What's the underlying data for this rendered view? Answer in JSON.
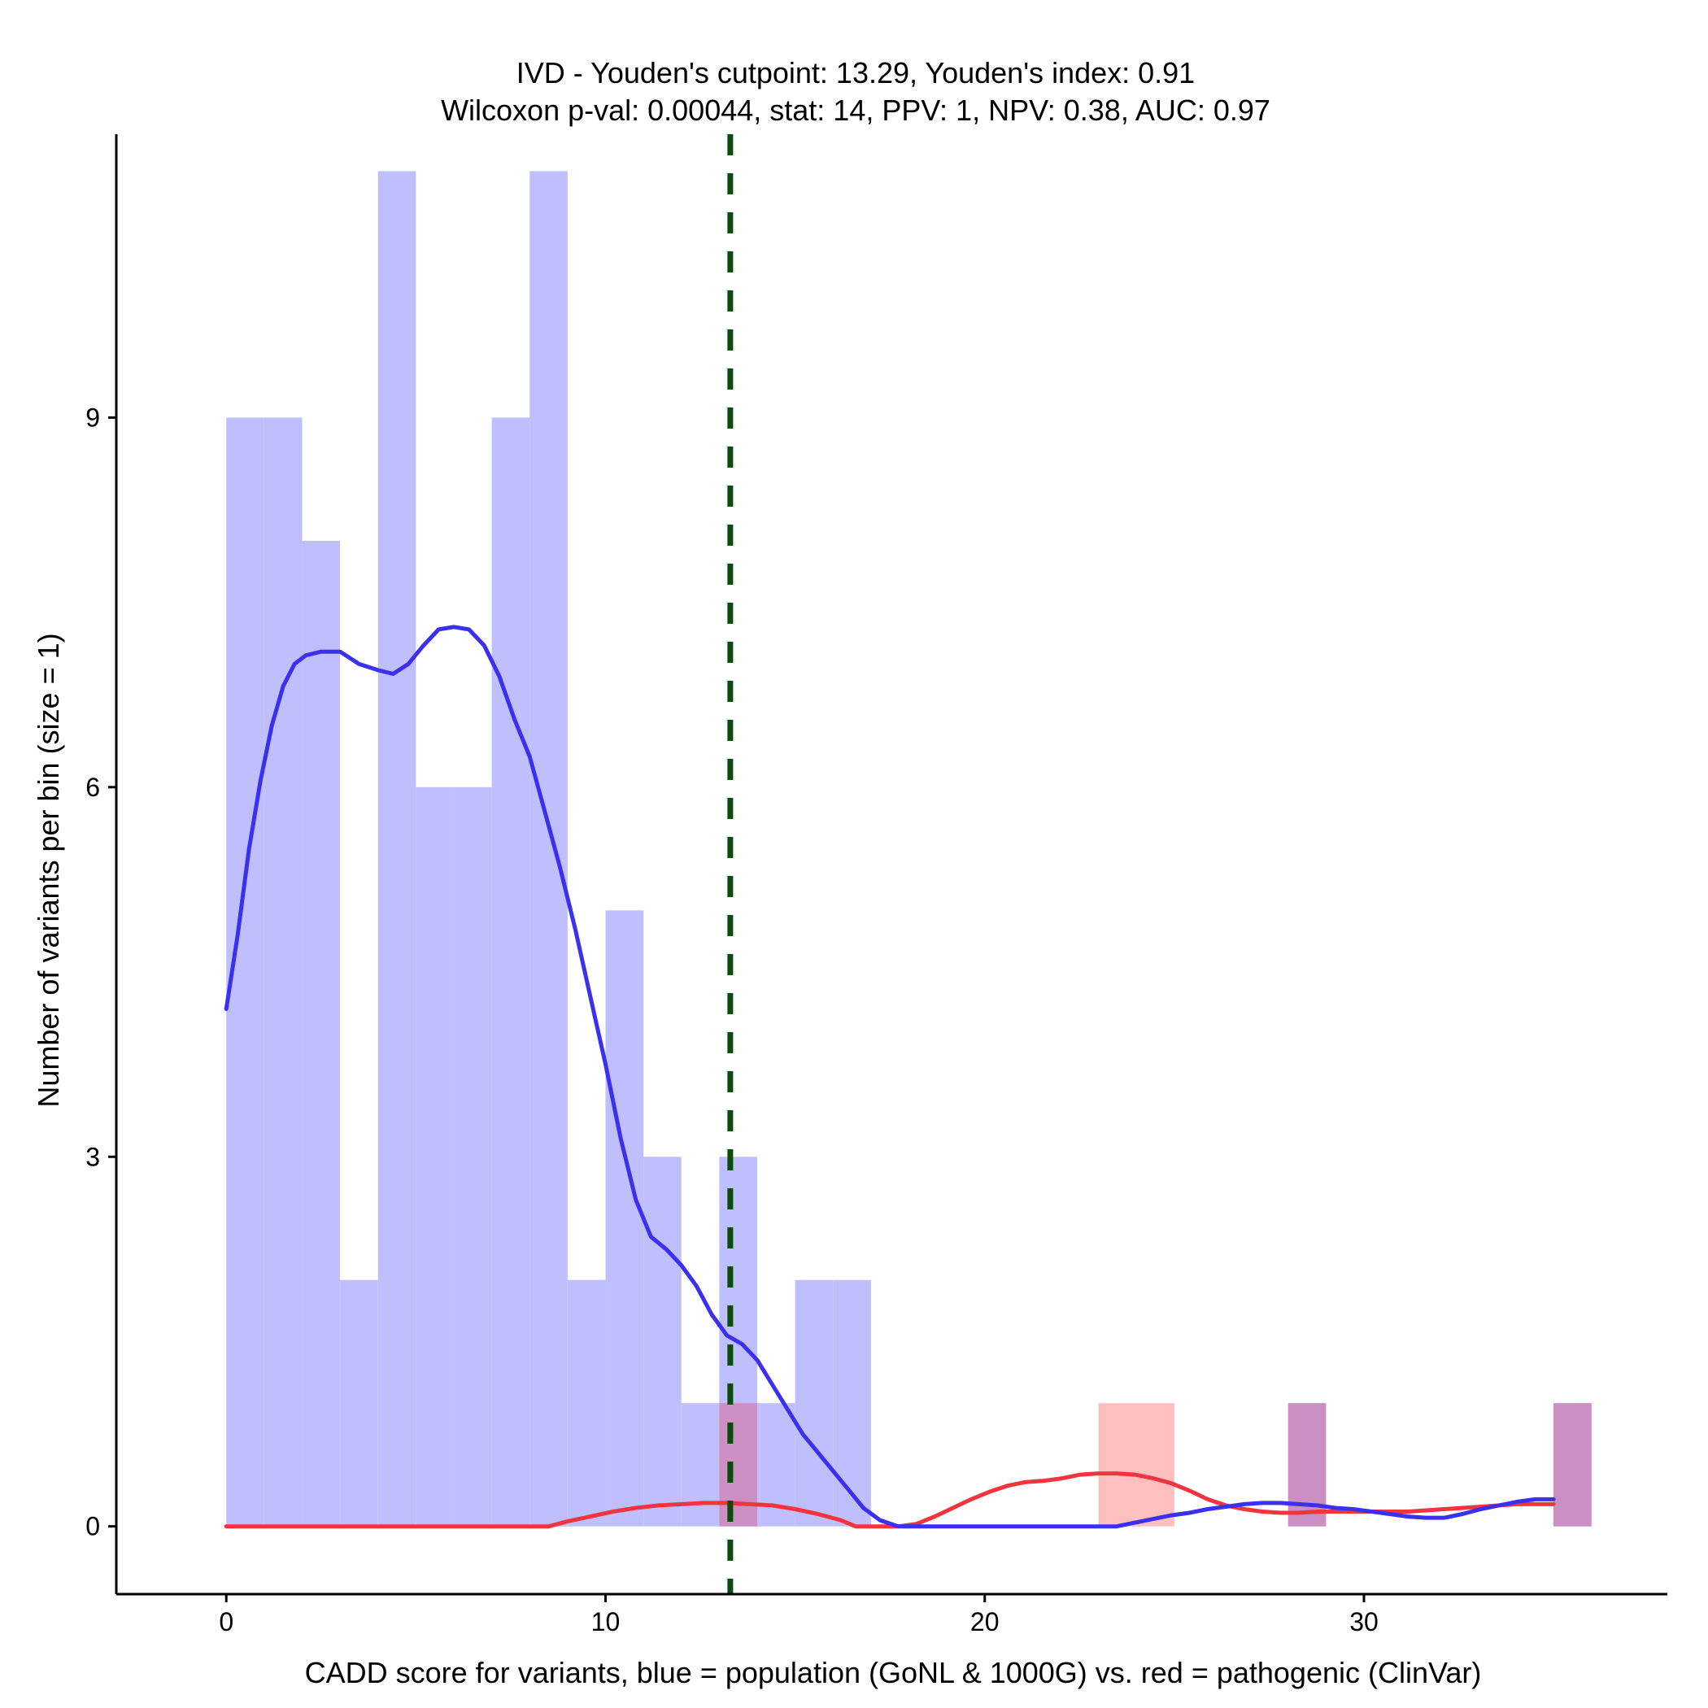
{
  "chart_data": {
    "type": "bar",
    "title_line1": "IVD - Youden's cutpoint: 13.29, Youden's index: 0.91",
    "title_line2": "Wilcoxon p-val: 0.00044, stat: 14, PPV: 1, NPV: 0.38, AUC: 0.97",
    "xlabel": "CADD score for variants, blue = population (GoNL & 1000G) vs. red = pathogenic (ClinVar)",
    "ylabel": "Number of variants per bin (size = 1)",
    "xlim": [
      -2.9,
      38.0
    ],
    "ylim": [
      -0.55,
      11.3
    ],
    "x_ticks": [
      0,
      10,
      20,
      30
    ],
    "y_ticks": [
      0,
      3,
      6,
      9
    ],
    "bin_width": 1,
    "cutpoint": 13.29,
    "colors": {
      "population_bar": "#bfbffe",
      "pathogenic_bar": "#ffbfbf",
      "overlap_bar": "#cc8fc4",
      "population_line": "#3b30f0",
      "pathogenic_line": "#f2343f",
      "cutpoint_line": "#0c4a0c"
    },
    "series": [
      {
        "name": "population (GoNL & 1000G)",
        "bins": [
          {
            "x": 0,
            "count": 9
          },
          {
            "x": 1,
            "count": 9
          },
          {
            "x": 2,
            "count": 8
          },
          {
            "x": 3,
            "count": 2
          },
          {
            "x": 4,
            "count": 11
          },
          {
            "x": 5,
            "count": 6
          },
          {
            "x": 6,
            "count": 6
          },
          {
            "x": 7,
            "count": 9
          },
          {
            "x": 8,
            "count": 11
          },
          {
            "x": 9,
            "count": 2
          },
          {
            "x": 10,
            "count": 5
          },
          {
            "x": 11,
            "count": 3
          },
          {
            "x": 12,
            "count": 1
          },
          {
            "x": 13,
            "count": 3
          },
          {
            "x": 14,
            "count": 1
          },
          {
            "x": 15,
            "count": 2
          },
          {
            "x": 16,
            "count": 2
          },
          {
            "x": 28,
            "count": 1
          },
          {
            "x": 35,
            "count": 1
          }
        ],
        "density_curve": [
          [
            0,
            4.2
          ],
          [
            0.3,
            4.8
          ],
          [
            0.6,
            5.5
          ],
          [
            0.9,
            6.05
          ],
          [
            1.2,
            6.5
          ],
          [
            1.5,
            6.82
          ],
          [
            1.8,
            7.0
          ],
          [
            2.1,
            7.07
          ],
          [
            2.5,
            7.1
          ],
          [
            3.0,
            7.1
          ],
          [
            3.5,
            7.0
          ],
          [
            4.0,
            6.95
          ],
          [
            4.4,
            6.92
          ],
          [
            4.8,
            7.0
          ],
          [
            5.2,
            7.15
          ],
          [
            5.6,
            7.28
          ],
          [
            6.0,
            7.3
          ],
          [
            6.4,
            7.28
          ],
          [
            6.8,
            7.15
          ],
          [
            7.2,
            6.9
          ],
          [
            7.6,
            6.55
          ],
          [
            8.0,
            6.25
          ],
          [
            8.4,
            5.8
          ],
          [
            8.8,
            5.35
          ],
          [
            9.2,
            4.85
          ],
          [
            9.6,
            4.3
          ],
          [
            10.0,
            3.75
          ],
          [
            10.4,
            3.15
          ],
          [
            10.8,
            2.65
          ],
          [
            11.2,
            2.35
          ],
          [
            11.6,
            2.25
          ],
          [
            12.0,
            2.12
          ],
          [
            12.4,
            1.95
          ],
          [
            12.8,
            1.72
          ],
          [
            13.2,
            1.55
          ],
          [
            13.6,
            1.48
          ],
          [
            14.0,
            1.35
          ],
          [
            14.4,
            1.15
          ],
          [
            14.8,
            0.95
          ],
          [
            15.2,
            0.75
          ],
          [
            15.6,
            0.6
          ],
          [
            16.0,
            0.45
          ],
          [
            16.4,
            0.3
          ],
          [
            16.8,
            0.15
          ],
          [
            17.2,
            0.05
          ],
          [
            17.6,
            0.0
          ],
          [
            18.0,
            0.0
          ],
          [
            19.0,
            0.0
          ],
          [
            20.0,
            0.0
          ],
          [
            21.0,
            0.0
          ],
          [
            22.0,
            0.0
          ],
          [
            22.4,
            0.0
          ],
          [
            22.8,
            0.03
          ],
          [
            23.2,
            0.06
          ],
          [
            23.6,
            0.09
          ],
          [
            24.0,
            0.11
          ],
          [
            24.4,
            0.14
          ],
          [
            24.8,
            0.16
          ],
          [
            25.2,
            0.18
          ],
          [
            25.6,
            0.19
          ],
          [
            26.0,
            0.19
          ],
          [
            26.4,
            0.18
          ],
          [
            26.8,
            0.17
          ],
          [
            27.2,
            0.15
          ],
          [
            27.6,
            0.14
          ],
          [
            28.0,
            0.12
          ],
          [
            28.4,
            0.1
          ],
          [
            28.8,
            0.08
          ],
          [
            29.2,
            0.07
          ],
          [
            29.6,
            0.07
          ],
          [
            30.0,
            0.1
          ],
          [
            30.4,
            0.14
          ],
          [
            30.8,
            0.17
          ],
          [
            31.2,
            0.2
          ],
          [
            31.6,
            0.22
          ],
          [
            32.0,
            0.22
          ]
        ]
      },
      {
        "name": "pathogenic (ClinVar)",
        "bins": [
          {
            "x": 13,
            "count": 1
          },
          {
            "x": 23,
            "count": 1
          },
          {
            "x": 24,
            "count": 1
          },
          {
            "x": 28,
            "count": 1
          },
          {
            "x": 35,
            "count": 1
          }
        ],
        "density_curve": [
          [
            0,
            0.0
          ],
          [
            2,
            0.0
          ],
          [
            4,
            0.0
          ],
          [
            6,
            0.0
          ],
          [
            8,
            0.0
          ],
          [
            8.5,
            0.0
          ],
          [
            9.0,
            0.04
          ],
          [
            9.6,
            0.08
          ],
          [
            10.2,
            0.12
          ],
          [
            10.8,
            0.15
          ],
          [
            11.4,
            0.17
          ],
          [
            12.0,
            0.18
          ],
          [
            12.6,
            0.19
          ],
          [
            13.2,
            0.19
          ],
          [
            13.8,
            0.18
          ],
          [
            14.4,
            0.17
          ],
          [
            15.0,
            0.14
          ],
          [
            15.6,
            0.1
          ],
          [
            16.2,
            0.05
          ],
          [
            16.6,
            0.0
          ],
          [
            17.0,
            0.0
          ],
          [
            17.6,
            0.0
          ],
          [
            18.0,
            0.02
          ],
          [
            18.4,
            0.08
          ],
          [
            18.8,
            0.15
          ],
          [
            19.2,
            0.22
          ],
          [
            19.6,
            0.28
          ],
          [
            20.0,
            0.33
          ],
          [
            20.4,
            0.36
          ],
          [
            20.8,
            0.37
          ],
          [
            21.2,
            0.39
          ],
          [
            21.6,
            0.42
          ],
          [
            22.0,
            0.43
          ],
          [
            22.4,
            0.43
          ],
          [
            22.8,
            0.42
          ],
          [
            23.2,
            0.39
          ],
          [
            23.6,
            0.35
          ],
          [
            24.0,
            0.29
          ],
          [
            24.4,
            0.22
          ],
          [
            24.8,
            0.17
          ],
          [
            25.2,
            0.14
          ],
          [
            25.6,
            0.12
          ],
          [
            26.0,
            0.11
          ],
          [
            26.4,
            0.11
          ],
          [
            26.8,
            0.12
          ],
          [
            27.2,
            0.12
          ],
          [
            27.6,
            0.12
          ],
          [
            28.0,
            0.12
          ],
          [
            28.4,
            0.12
          ],
          [
            28.8,
            0.12
          ],
          [
            29.2,
            0.13
          ],
          [
            29.6,
            0.14
          ],
          [
            30.0,
            0.15
          ],
          [
            30.4,
            0.16
          ],
          [
            30.8,
            0.17
          ],
          [
            31.2,
            0.18
          ],
          [
            31.6,
            0.18
          ],
          [
            32.0,
            0.18
          ]
        ]
      }
    ]
  }
}
